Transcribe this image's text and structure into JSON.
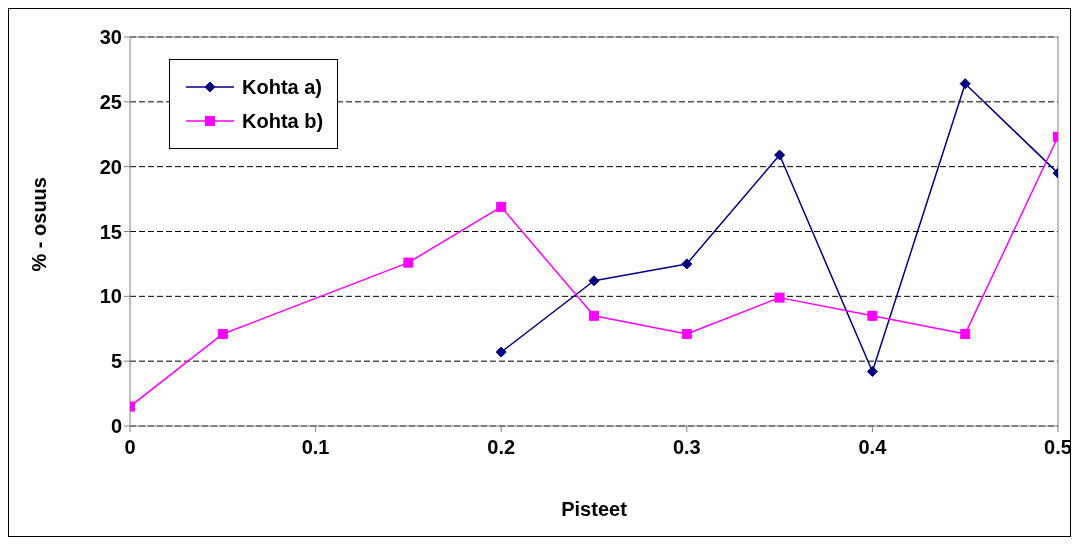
{
  "chart_data": {
    "type": "line",
    "xlabel": "Pisteet",
    "ylabel": "% - osuus",
    "xlim": [
      0,
      0.5
    ],
    "xticks": [
      0,
      0.1,
      0.2,
      0.3,
      0.4,
      0.5
    ],
    "ylim": [
      0,
      30
    ],
    "yticks": [
      0,
      5,
      10,
      15,
      20,
      25,
      30
    ],
    "grid": "y",
    "legend": "top left",
    "line_style": "solid",
    "series": [
      {
        "name": "Kohta a)",
        "color": "#000080",
        "marker": "diamond",
        "x": [
          0.2,
          0.25,
          0.3,
          0.35,
          0.4,
          0.45,
          0.5
        ],
        "values": [
          5.7,
          11.2,
          12.5,
          20.9,
          4.2,
          26.4,
          19.5
        ]
      },
      {
        "name": "Kohta b)",
        "color": "#ff00ff",
        "marker": "square",
        "x": [
          0,
          0.05,
          0.15,
          0.2,
          0.25,
          0.3,
          0.35,
          0.4,
          0.45,
          0.5
        ],
        "values": [
          1.5,
          7.1,
          12.6,
          16.9,
          8.5,
          7.1,
          9.9,
          8.5,
          7.1,
          22.3
        ]
      }
    ]
  }
}
